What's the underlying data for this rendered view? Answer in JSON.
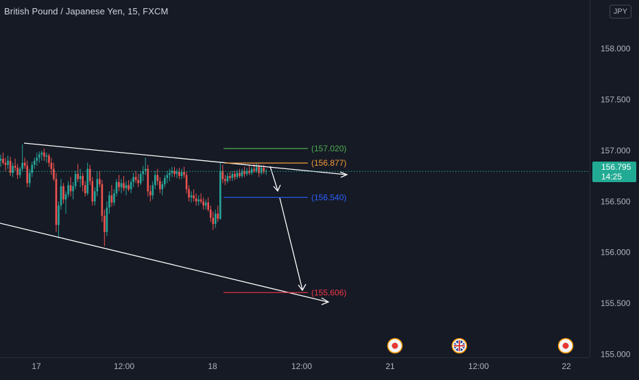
{
  "header": {
    "title": "British Pound / Japanese Yen, 15, FXCM",
    "currency": "JPY"
  },
  "colors": {
    "background": "#161a25",
    "up": "#26a69a",
    "down": "#ef5350",
    "axis_text": "#b2b5be",
    "trend_line": "#ffffff",
    "level_green": "#4caf50",
    "level_orange": "#f89d3b",
    "level_blue": "#2962ff",
    "level_red": "#f23645",
    "last_price": "#22ab94"
  },
  "chart_data": {
    "type": "candlestick",
    "symbol": "GBPJPY",
    "interval": "15",
    "y_ticks": [
      "158.000",
      "157.500",
      "157.000",
      "156.500",
      "156.000",
      "155.500",
      "155.000"
    ],
    "ylim": [
      155.0,
      158.4
    ],
    "x_ticks": [
      "17",
      "12:00",
      "18",
      "12:00",
      "21",
      "12:00",
      "22"
    ],
    "price_levels": [
      {
        "label": "(157.020)",
        "value": 157.02,
        "color": "#4caf50"
      },
      {
        "label": "(156.877)",
        "value": 156.877,
        "color": "#f89d3b"
      },
      {
        "label": "(156.540)",
        "value": 156.54,
        "color": "#2962ff"
      },
      {
        "label": "(155.606)",
        "value": 155.606,
        "color": "#f23645"
      }
    ],
    "last_price": {
      "value": "156.795",
      "countdown": "14:25"
    },
    "candles": [
      [
        156.9,
        156.96,
        156.84,
        156.92
      ],
      [
        156.92,
        156.98,
        156.86,
        156.88
      ],
      [
        156.88,
        156.93,
        156.8,
        156.86
      ],
      [
        156.86,
        156.95,
        156.82,
        156.9
      ],
      [
        156.9,
        156.94,
        156.75,
        156.78
      ],
      [
        156.78,
        156.88,
        156.74,
        156.85
      ],
      [
        156.85,
        156.92,
        156.8,
        156.83
      ],
      [
        156.83,
        156.87,
        156.72,
        156.76
      ],
      [
        156.76,
        156.84,
        156.73,
        156.82
      ],
      [
        156.82,
        157.06,
        156.8,
        156.88
      ],
      [
        156.88,
        156.93,
        156.82,
        156.85
      ],
      [
        156.85,
        156.9,
        156.64,
        156.68
      ],
      [
        156.68,
        156.82,
        156.64,
        156.78
      ],
      [
        156.78,
        156.89,
        156.74,
        156.86
      ],
      [
        156.86,
        156.93,
        156.82,
        156.9
      ],
      [
        156.9,
        156.98,
        156.85,
        156.93
      ],
      [
        156.93,
        156.99,
        156.88,
        156.96
      ],
      [
        156.96,
        157.0,
        156.9,
        156.98
      ],
      [
        156.98,
        157.02,
        156.9,
        156.94
      ],
      [
        156.94,
        156.98,
        156.88,
        156.95
      ],
      [
        156.95,
        156.97,
        156.84,
        156.88
      ],
      [
        156.88,
        156.93,
        156.76,
        156.82
      ],
      [
        156.82,
        156.88,
        156.7,
        156.72
      ],
      [
        156.72,
        156.78,
        156.2,
        156.27
      ],
      [
        156.27,
        156.5,
        156.14,
        156.46
      ],
      [
        156.46,
        156.72,
        156.42,
        156.65
      ],
      [
        156.65,
        156.68,
        156.48,
        156.52
      ],
      [
        156.52,
        156.6,
        156.38,
        156.57
      ],
      [
        156.57,
        156.7,
        156.54,
        156.66
      ],
      [
        156.66,
        156.74,
        156.55,
        156.6
      ],
      [
        156.6,
        156.69,
        156.52,
        156.65
      ],
      [
        156.65,
        156.8,
        156.62,
        156.77
      ],
      [
        156.77,
        156.87,
        156.69,
        156.72
      ],
      [
        156.72,
        156.82,
        156.64,
        156.75
      ],
      [
        156.75,
        156.78,
        156.6,
        156.66
      ],
      [
        156.66,
        156.7,
        156.55,
        156.58
      ],
      [
        156.58,
        156.88,
        156.56,
        156.82
      ],
      [
        156.82,
        156.86,
        156.66,
        156.7
      ],
      [
        156.7,
        156.74,
        156.46,
        156.5
      ],
      [
        156.5,
        156.64,
        156.46,
        156.6
      ],
      [
        156.6,
        156.79,
        156.55,
        156.72
      ],
      [
        156.72,
        156.8,
        156.64,
        156.67
      ],
      [
        156.67,
        156.71,
        156.3,
        156.36
      ],
      [
        156.36,
        156.42,
        156.06,
        156.2
      ],
      [
        156.2,
        156.5,
        156.16,
        156.44
      ],
      [
        156.44,
        156.6,
        156.38,
        156.56
      ],
      [
        156.56,
        156.66,
        156.45,
        156.49
      ],
      [
        156.49,
        156.62,
        156.46,
        156.58
      ],
      [
        156.58,
        156.72,
        156.55,
        156.69
      ],
      [
        156.69,
        156.76,
        156.6,
        156.64
      ],
      [
        156.64,
        156.72,
        156.58,
        156.68
      ],
      [
        156.68,
        156.75,
        156.6,
        156.63
      ],
      [
        156.63,
        156.7,
        156.56,
        156.66
      ],
      [
        156.66,
        156.71,
        156.6,
        156.62
      ],
      [
        156.62,
        156.72,
        156.58,
        156.69
      ],
      [
        156.69,
        156.78,
        156.64,
        156.74
      ],
      [
        156.74,
        156.8,
        156.68,
        156.71
      ],
      [
        156.71,
        156.77,
        156.64,
        156.68
      ],
      [
        156.68,
        156.8,
        156.66,
        156.77
      ],
      [
        156.77,
        156.85,
        156.7,
        156.8
      ],
      [
        156.8,
        156.93,
        156.76,
        156.82
      ],
      [
        156.82,
        156.86,
        156.55,
        156.6
      ],
      [
        156.6,
        156.66,
        156.5,
        156.56
      ],
      [
        156.56,
        156.7,
        156.52,
        156.66
      ],
      [
        156.66,
        156.8,
        156.62,
        156.76
      ],
      [
        156.76,
        156.82,
        156.66,
        156.7
      ],
      [
        156.7,
        156.74,
        156.58,
        156.62
      ],
      [
        156.62,
        156.7,
        156.56,
        156.67
      ],
      [
        156.67,
        156.76,
        156.64,
        156.73
      ],
      [
        156.73,
        156.8,
        156.68,
        156.76
      ],
      [
        156.76,
        156.82,
        156.7,
        156.78
      ],
      [
        156.78,
        156.84,
        156.74,
        156.8
      ],
      [
        156.8,
        156.84,
        156.74,
        156.77
      ],
      [
        156.77,
        156.82,
        156.73,
        156.79
      ],
      [
        156.79,
        156.83,
        156.72,
        156.75
      ],
      [
        156.75,
        156.82,
        156.72,
        156.79
      ],
      [
        156.79,
        156.84,
        156.73,
        156.76
      ],
      [
        156.76,
        156.79,
        156.58,
        156.62
      ],
      [
        156.62,
        156.66,
        156.5,
        156.54
      ],
      [
        156.54,
        156.6,
        156.49,
        156.56
      ],
      [
        156.56,
        156.62,
        156.5,
        156.53
      ],
      [
        156.53,
        156.58,
        156.46,
        156.5
      ],
      [
        156.5,
        156.56,
        156.46,
        156.52
      ],
      [
        156.52,
        156.58,
        156.48,
        156.5
      ],
      [
        156.5,
        156.54,
        156.42,
        156.46
      ],
      [
        156.46,
        156.52,
        156.42,
        156.49
      ],
      [
        156.49,
        156.54,
        156.4,
        156.42
      ],
      [
        156.42,
        156.46,
        156.3,
        156.34
      ],
      [
        156.34,
        156.4,
        156.22,
        156.28
      ],
      [
        156.28,
        156.42,
        156.24,
        156.38
      ],
      [
        156.38,
        156.46,
        156.3,
        156.33
      ],
      [
        156.33,
        156.88,
        156.32,
        156.8
      ],
      [
        156.8,
        156.86,
        156.68,
        156.72
      ],
      [
        156.72,
        156.76,
        156.66,
        156.7
      ],
      [
        156.7,
        156.78,
        156.68,
        156.75
      ],
      [
        156.75,
        156.79,
        156.7,
        156.73
      ],
      [
        156.73,
        156.8,
        156.7,
        156.77
      ],
      [
        156.77,
        156.8,
        156.71,
        156.74
      ],
      [
        156.74,
        156.81,
        156.72,
        156.78
      ],
      [
        156.78,
        156.82,
        156.73,
        156.75
      ],
      [
        156.75,
        156.82,
        156.73,
        156.8
      ],
      [
        156.8,
        156.84,
        156.74,
        156.77
      ],
      [
        156.77,
        156.83,
        156.75,
        156.8
      ],
      [
        156.8,
        156.86,
        156.76,
        156.78
      ],
      [
        156.78,
        156.84,
        156.76,
        156.82
      ],
      [
        156.82,
        156.87,
        156.78,
        156.8
      ],
      [
        156.8,
        156.88,
        156.78,
        156.84
      ],
      [
        156.84,
        156.87,
        156.74,
        156.78
      ],
      [
        156.78,
        156.86,
        156.76,
        156.83
      ],
      [
        156.83,
        156.86,
        156.77,
        156.79
      ],
      [
        156.79,
        156.82,
        156.76,
        156.8
      ]
    ]
  },
  "events": [
    {
      "name": "event-flag-icon"
    },
    {
      "name": "uk-flag-icon"
    },
    {
      "name": "event-flag-icon"
    }
  ]
}
